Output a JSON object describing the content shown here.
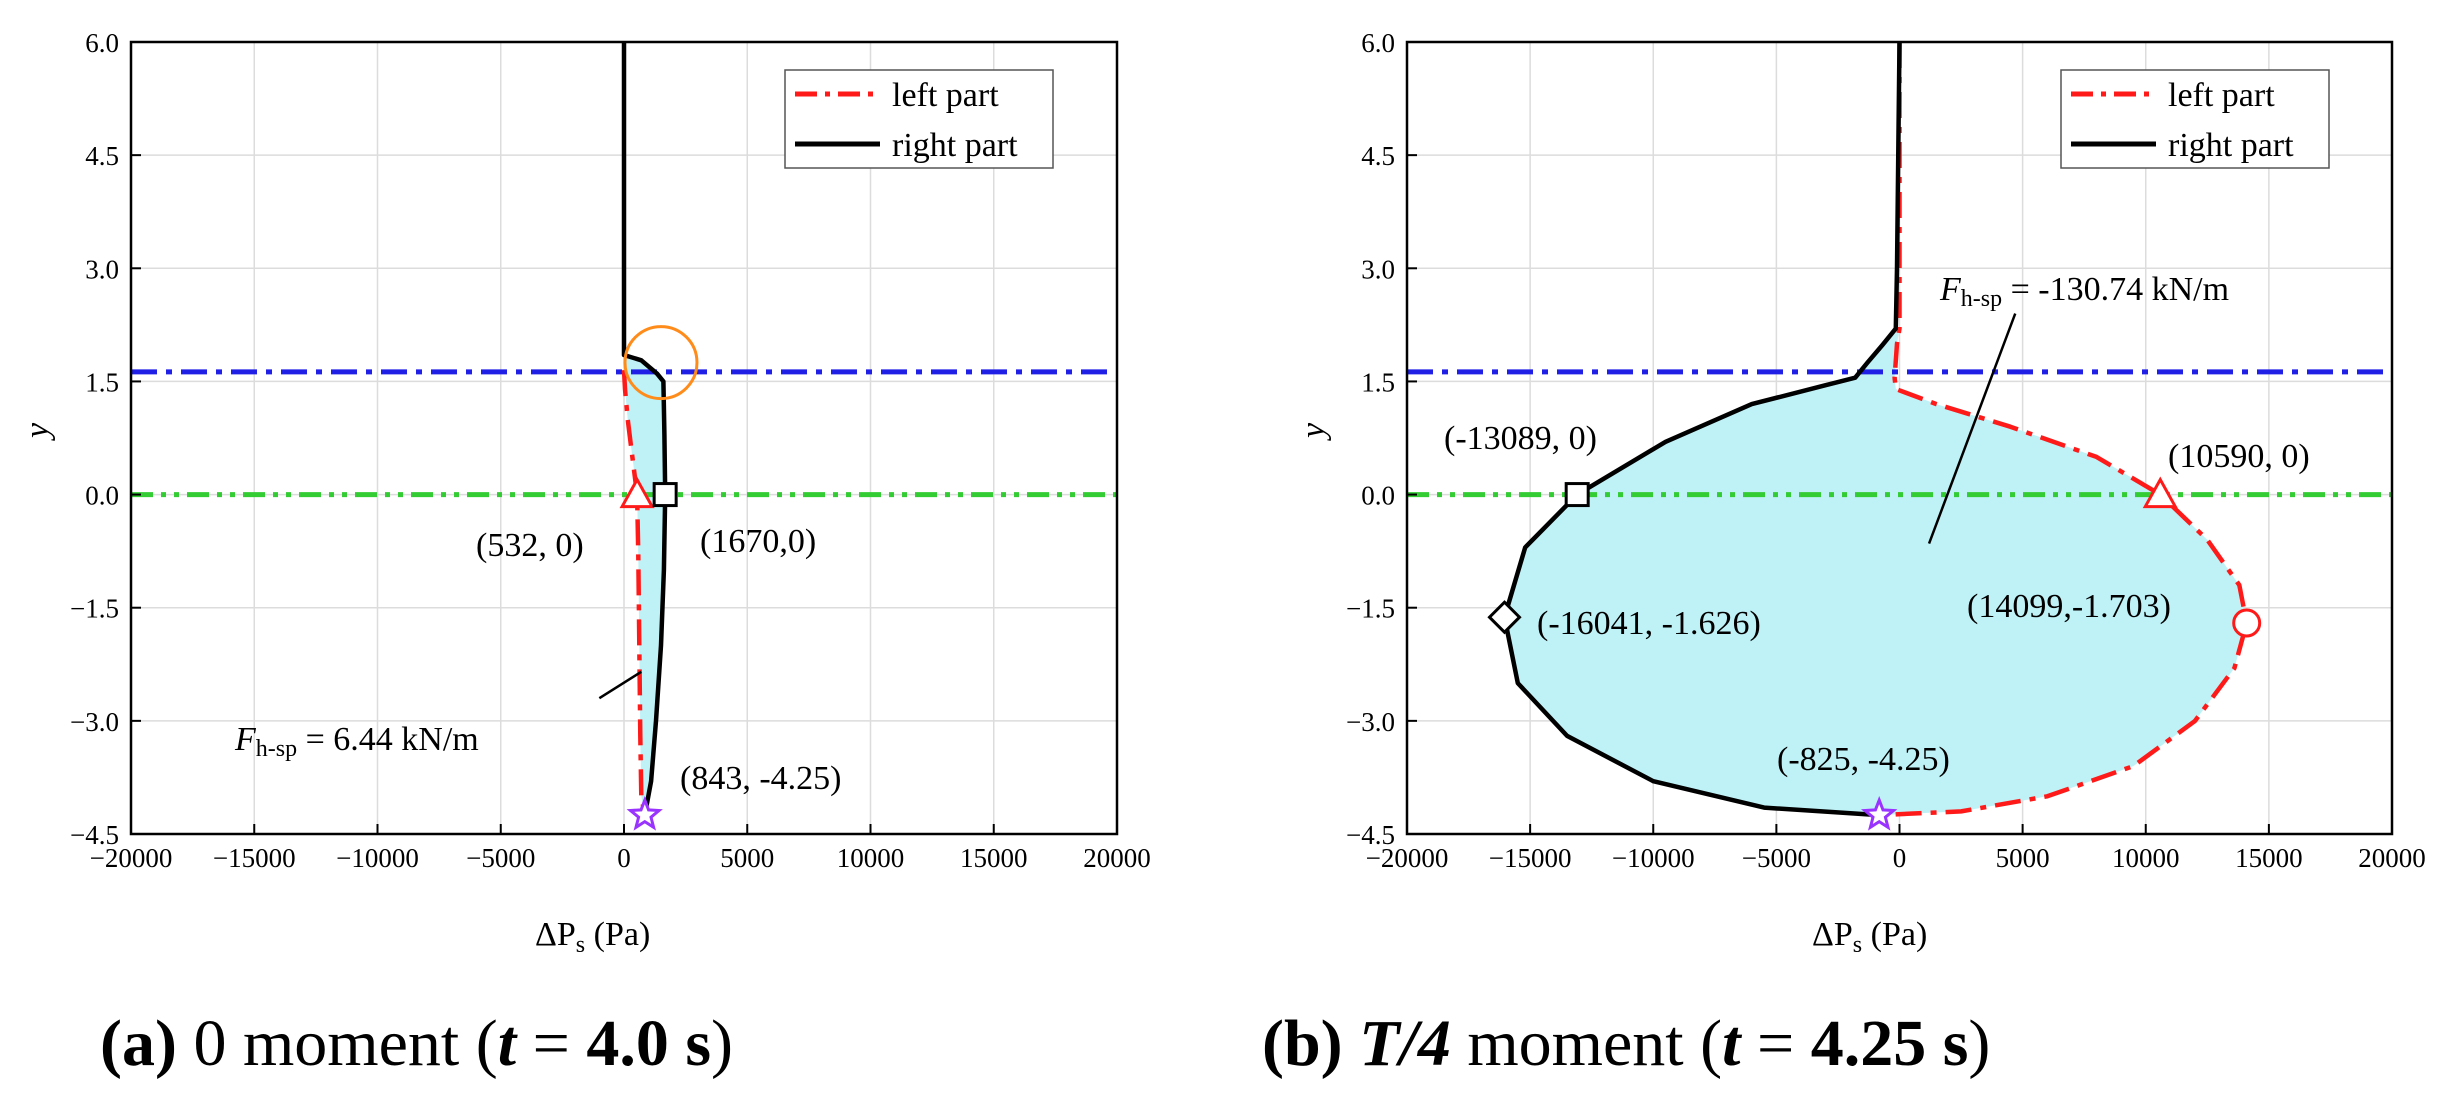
{
  "chart_data": [
    {
      "type": "line",
      "panel": "a",
      "caption": {
        "letter": "(a)",
        "text_parts": [
          " 0 moment (",
          "t",
          " = ",
          "4.0 s",
          ")"
        ]
      },
      "xlabel": {
        "main": "ΔP",
        "sub": "s",
        "unit": " (Pa)"
      },
      "ylabel": "y",
      "xlim": [
        -20000,
        20000
      ],
      "ylim": [
        -4.5,
        6.0
      ],
      "xticks": [
        -20000,
        -15000,
        -10000,
        -5000,
        0,
        5000,
        10000,
        15000,
        20000
      ],
      "xtick_labels": [
        "−20000",
        "−15000",
        "−10000",
        "−5000",
        "0",
        "5000",
        "10000",
        "15000",
        "20000"
      ],
      "yticks": [
        -4.5,
        -3.0,
        -1.5,
        0.0,
        1.5,
        3.0,
        4.5,
        6.0
      ],
      "ytick_labels": [
        "−4.5",
        "−3.0",
        "−1.5",
        "0.0",
        "1.5",
        "3.0",
        "4.5",
        "6.0"
      ],
      "grid": true,
      "legend": {
        "position": "top-right",
        "entries": [
          "left part",
          "right part"
        ]
      },
      "hlines": [
        {
          "y": 1.626,
          "color": "#1f1fe6",
          "style": "dash-dot"
        },
        {
          "y": 0.0,
          "color": "#33cc33",
          "style": "dash-dot-dot"
        }
      ],
      "series": [
        {
          "name": "left part",
          "color": "#ff1a1a",
          "style": "dash-dot",
          "points": [
            [
              0,
              1.65
            ],
            [
              40,
              1.4
            ],
            [
              150,
              1.0
            ],
            [
              300,
              0.6
            ],
            [
              532,
              0.0
            ],
            [
              580,
              -0.8
            ],
            [
              620,
              -2.0
            ],
            [
              660,
              -3.2
            ],
            [
              700,
              -4.0
            ],
            [
              843,
              -4.25
            ]
          ]
        },
        {
          "name": "right part",
          "color": "#000000",
          "style": "solid",
          "points": [
            [
              0,
              6.0
            ],
            [
              0,
              1.85
            ],
            [
              700,
              1.78
            ],
            [
              1350,
              1.6
            ],
            [
              1600,
              1.5
            ],
            [
              1640,
              0.8
            ],
            [
              1670,
              0.0
            ],
            [
              1620,
              -1.0
            ],
            [
              1500,
              -2.0
            ],
            [
              1300,
              -3.0
            ],
            [
              1100,
              -3.8
            ],
            [
              843,
              -4.25
            ]
          ]
        }
      ],
      "markers": [
        {
          "shape": "triangle",
          "x": 532,
          "y": 0,
          "color": "#ff1a1a",
          "label": "(532, 0)"
        },
        {
          "shape": "square",
          "x": 1670,
          "y": 0,
          "color": "#000000",
          "label": "(1670,0)"
        },
        {
          "shape": "star",
          "x": 843,
          "y": -4.25,
          "color": "#9933ff",
          "label": "(843, -4.25)"
        },
        {
          "shape": "circle-highlight",
          "x": 1500,
          "y": 1.75,
          "color": "#ff8c1a",
          "label": ""
        }
      ],
      "force_annotation": {
        "F": "F",
        "sub": "h-sp",
        "value": " = 6.44 kN/m",
        "pointer_from": [
          -1000,
          -2.7
        ],
        "pointer_to": [
          700,
          -2.35
        ]
      }
    },
    {
      "type": "line",
      "panel": "b",
      "caption": {
        "letter": "(b)",
        "text_parts": [
          " ",
          "T/4",
          "  moment (",
          "t",
          " = ",
          "4.25 s",
          ")"
        ]
      },
      "xlabel": {
        "main": "ΔP",
        "sub": "s",
        "unit": " (Pa)"
      },
      "ylabel": "y",
      "xlim": [
        -20000,
        20000
      ],
      "ylim": [
        -4.5,
        6.0
      ],
      "xticks": [
        -20000,
        -15000,
        -10000,
        -5000,
        0,
        5000,
        10000,
        15000,
        20000
      ],
      "xtick_labels": [
        "−20000",
        "−15000",
        "−10000",
        "−5000",
        "0",
        "5000",
        "10000",
        "15000",
        "20000"
      ],
      "yticks": [
        -4.5,
        -3.0,
        -1.5,
        0.0,
        1.5,
        3.0,
        4.5,
        6.0
      ],
      "ytick_labels": [
        "−4.5",
        "−3.0",
        "−1.5",
        "0.0",
        "1.5",
        "3.0",
        "4.5",
        "6.0"
      ],
      "grid": true,
      "legend": {
        "position": "top-right",
        "entries": [
          "left part",
          "right part"
        ]
      },
      "hlines": [
        {
          "y": 1.626,
          "color": "#1f1fe6",
          "style": "dash-dot"
        },
        {
          "y": 0.0,
          "color": "#33cc33",
          "style": "dash-dot-dot"
        }
      ],
      "series": [
        {
          "name": "left part",
          "color": "#ff1a1a",
          "style": "dash-dot",
          "points": [
            [
              0,
              6.0
            ],
            [
              0,
              2.2
            ],
            [
              -100,
              2.0
            ],
            [
              -200,
              1.55
            ],
            [
              -150,
              1.4
            ],
            [
              1500,
              1.2
            ],
            [
              4500,
              0.9
            ],
            [
              8000,
              0.5
            ],
            [
              10590,
              0.0
            ],
            [
              12500,
              -0.6
            ],
            [
              13800,
              -1.2
            ],
            [
              14099,
              -1.703
            ],
            [
              13600,
              -2.3
            ],
            [
              12000,
              -3.0
            ],
            [
              9500,
              -3.6
            ],
            [
              6000,
              -4.0
            ],
            [
              2500,
              -4.2
            ],
            [
              -825,
              -4.25
            ]
          ]
        },
        {
          "name": "right part",
          "color": "#000000",
          "style": "solid",
          "points": [
            [
              0,
              6.0
            ],
            [
              -100,
              3.0
            ],
            [
              -150,
              2.2
            ],
            [
              -700,
              1.98
            ],
            [
              -1300,
              1.75
            ],
            [
              -1800,
              1.55
            ],
            [
              -3000,
              1.45
            ],
            [
              -6000,
              1.2
            ],
            [
              -9500,
              0.7
            ],
            [
              -13089,
              0.0
            ],
            [
              -15200,
              -0.7
            ],
            [
              -16041,
              -1.626
            ],
            [
              -15500,
              -2.5
            ],
            [
              -13500,
              -3.2
            ],
            [
              -10000,
              -3.8
            ],
            [
              -5500,
              -4.15
            ],
            [
              -825,
              -4.25
            ]
          ]
        }
      ],
      "markers": [
        {
          "shape": "square",
          "x": -13089,
          "y": 0,
          "color": "#000000",
          "label": "(-13089, 0)"
        },
        {
          "shape": "triangle",
          "x": 10590,
          "y": 0,
          "color": "#ff1a1a",
          "label": "(10590, 0)"
        },
        {
          "shape": "diamond",
          "x": -16041,
          "y": -1.626,
          "color": "#000000",
          "label": "(-16041, -1.626)"
        },
        {
          "shape": "circle",
          "x": 14099,
          "y": -1.703,
          "color": "#ff1a1a",
          "label": "(14099,-1.703)"
        },
        {
          "shape": "star",
          "x": -825,
          "y": -4.25,
          "color": "#9933ff",
          "label": "(-825, -4.25)"
        }
      ],
      "force_annotation": {
        "F": "F",
        "sub": "h-sp",
        "value": " = -130.74 kN/m",
        "pointer_from": [
          4700,
          2.4
        ],
        "pointer_to": [
          1200,
          -0.65
        ]
      }
    }
  ]
}
